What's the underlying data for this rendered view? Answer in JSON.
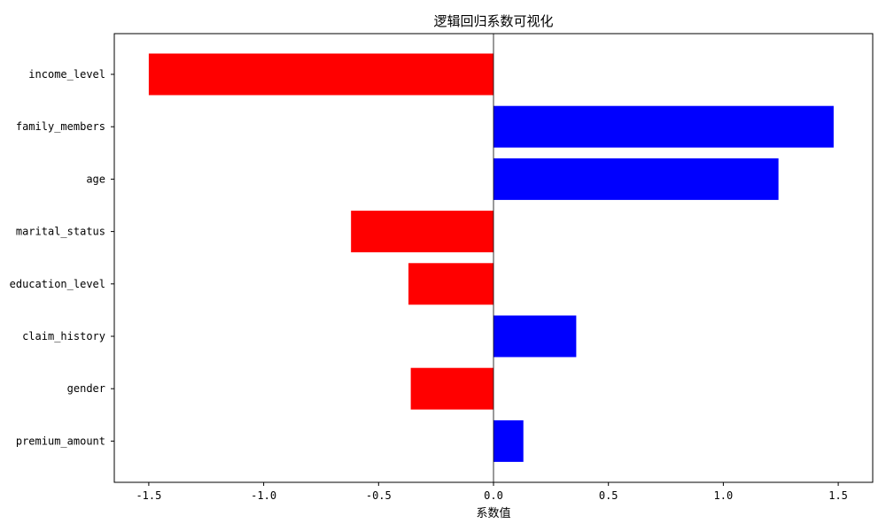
{
  "chart_data": {
    "type": "bar",
    "orientation": "horizontal",
    "title": "逻辑回归系数可视化",
    "xlabel": "系数值",
    "ylabel": "",
    "categories": [
      "income_level",
      "family_members",
      "age",
      "marital_status",
      "education_level",
      "claim_history",
      "gender",
      "premium_amount"
    ],
    "values": [
      -1.5,
      1.48,
      1.24,
      -0.62,
      -0.37,
      0.36,
      -0.36,
      0.13
    ],
    "xlim": [
      -1.65,
      1.65
    ],
    "xticks": [
      -1.5,
      -1.0,
      -0.5,
      0.0,
      0.5,
      1.0,
      1.5
    ],
    "xtick_labels": [
      "-1.5",
      "-1.0",
      "-0.5",
      "0.0",
      "0.5",
      "1.0",
      "1.5"
    ],
    "colors": {
      "positive": "#0000ff",
      "negative": "#ff0000",
      "zero_line": "#000000"
    },
    "grid": false,
    "legend": "none"
  }
}
